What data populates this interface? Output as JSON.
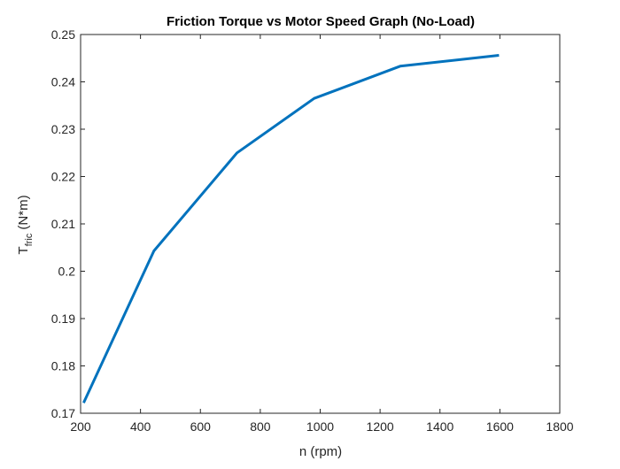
{
  "chart_data": {
    "type": "line",
    "title": "Friction Torque vs Motor Speed Graph (No-Load)",
    "xlabel": "n (rpm)",
    "ylabel": {
      "main": "T",
      "subscript": "fric",
      "suffix": " (N*m)"
    },
    "xlim": [
      200,
      1800
    ],
    "ylim": [
      0.17,
      0.25
    ],
    "xticks": [
      200,
      400,
      600,
      800,
      1000,
      1200,
      1400,
      1600,
      1800
    ],
    "xtick_labels": [
      "200",
      "400",
      "600",
      "800",
      "1000",
      "1200",
      "1400",
      "1600",
      "1800"
    ],
    "yticks": [
      0.17,
      0.18,
      0.19,
      0.2,
      0.21,
      0.22,
      0.23,
      0.24,
      0.25
    ],
    "ytick_labels": [
      "0.17",
      "0.18",
      "0.19",
      "0.2",
      "0.21",
      "0.22",
      "0.23",
      "0.24",
      "0.25"
    ],
    "grid": false,
    "legend": "none",
    "series": [
      {
        "color": "#0072bd",
        "x": [
          210,
          445,
          722,
          980,
          1267,
          1597
        ],
        "y": [
          0.1722,
          0.2043,
          0.225,
          0.2365,
          0.2433,
          0.2456
        ]
      }
    ]
  }
}
